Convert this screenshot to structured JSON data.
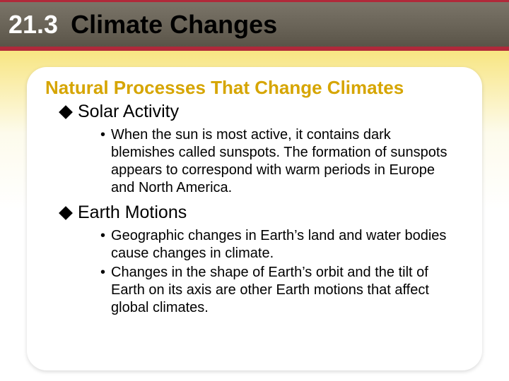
{
  "header": {
    "number": "21.3",
    "title": "Climate Changes",
    "number_color": "#ffffff",
    "title_color": "#000000",
    "band_border_color": "#b0293a"
  },
  "card": {
    "subtitle": "Natural Processes That Change Climates",
    "subtitle_color": "#d6a500",
    "topics": [
      {
        "label": "Solar Activity",
        "bullets": [
          "When the sun is most active, it contains dark blemishes called sunspots. The formation of sunspots appears to correspond with warm periods in Europe and North America."
        ]
      },
      {
        "label": "Earth Motions",
        "bullets": [
          "Geographic changes in Earth’s land and water bodies cause changes in climate.",
          "Changes in the shape of Earth’s orbit and the tilt of Earth on its axis are other Earth motions that affect global climates."
        ]
      }
    ]
  },
  "style": {
    "background_gradient": [
      "#f5d94a",
      "#f8e78a",
      "#fdfbec",
      "#ffffff"
    ],
    "card_background": "#ffffff",
    "bullet_marker": "•",
    "diamond_marker": "◆"
  }
}
